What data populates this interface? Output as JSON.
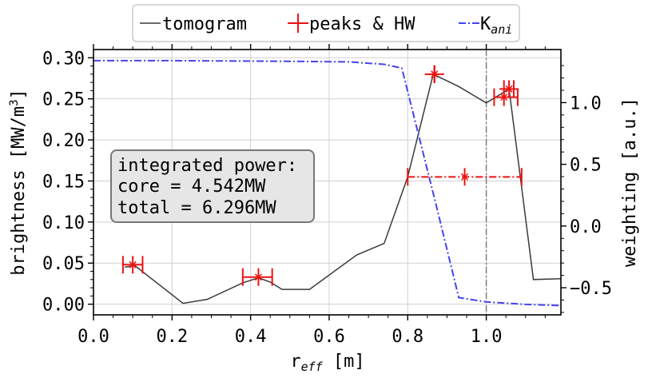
{
  "chart_data": {
    "type": "line",
    "xlabel": "r_eff [m]",
    "xlabel_main": "r",
    "xlabel_sub": "eff",
    "xlabel_unit": " [m]",
    "ylabel_left": "brightness [MW/m³]",
    "ylabel_left_main": "brightness [MW/m",
    "ylabel_left_sup": "3",
    "ylabel_left_end": "]",
    "ylabel_right": "weighting [a.u.]",
    "xlim": [
      0.0,
      1.19
    ],
    "ylim_left": [
      -0.013,
      0.31
    ],
    "ylim_right": [
      -0.72,
      1.43
    ],
    "x_ticks": [
      0.0,
      0.2,
      0.4,
      0.6,
      0.8,
      1.0
    ],
    "x_tick_labels": [
      "0.0",
      "0.2",
      "0.4",
      "0.6",
      "0.8",
      "1.0"
    ],
    "y_left_ticks": [
      0.0,
      0.05,
      0.1,
      0.15,
      0.2,
      0.25,
      0.3
    ],
    "y_left_tick_labels": [
      "0.00",
      "0.05",
      "0.10",
      "0.15",
      "0.20",
      "0.25",
      "0.30"
    ],
    "y_right_ticks": [
      -0.5,
      0.0,
      0.5,
      1.0
    ],
    "y_right_tick_labels": [
      "−0.5",
      "0.0",
      "0.5",
      "1.0"
    ],
    "grid": true,
    "legend_position": "top-center (above plot)",
    "legend": [
      {
        "label": "tomogram",
        "style": "line",
        "color": "#3a3a3a"
      },
      {
        "label": "peaks & HW",
        "style": "cross",
        "color": "#ee1111"
      },
      {
        "label": "K",
        "sub": "ani",
        "style": "dashdot",
        "color": "#4444ee"
      }
    ],
    "series": [
      {
        "name": "tomogram",
        "axis": "left",
        "color": "#3a3a3a",
        "x": [
          0.08,
          0.105,
          0.228,
          0.29,
          0.38,
          0.42,
          0.45,
          0.48,
          0.55,
          0.67,
          0.74,
          0.8,
          0.865,
          0.93,
          1.0,
          1.058,
          1.12,
          1.19
        ],
        "y": [
          0.045,
          0.047,
          0.001,
          0.006,
          0.026,
          0.032,
          0.027,
          0.018,
          0.018,
          0.06,
          0.074,
          0.155,
          0.28,
          0.265,
          0.245,
          0.262,
          0.03,
          0.031
        ]
      },
      {
        "name": "K_ani",
        "axis": "right",
        "color": "#4444ee",
        "x": [
          0.0,
          0.2,
          0.5,
          0.65,
          0.74,
          0.785,
          0.87,
          0.93,
          1.0,
          1.1,
          1.19
        ],
        "y": [
          1.34,
          1.34,
          1.335,
          1.33,
          1.31,
          1.28,
          0.2,
          -0.58,
          -0.615,
          -0.635,
          -0.645
        ]
      }
    ],
    "peaks": [
      {
        "x": 0.1,
        "y": 0.048,
        "hw_left": 0.075,
        "hw_right": 0.125,
        "err": 0.006,
        "major": false
      },
      {
        "x": 0.42,
        "y": 0.033,
        "hw_left": 0.38,
        "hw_right": 0.455,
        "err": 0.01,
        "major": false
      },
      {
        "x": 0.868,
        "y": 0.28,
        "hw_left": 0.868,
        "hw_right": 0.868,
        "err": 0.01,
        "major": false
      },
      {
        "x": 1.058,
        "y": 0.262,
        "hw_left": 1.045,
        "hw_right": 1.07,
        "err": 0.008,
        "major": false
      },
      {
        "x": 1.045,
        "y": 0.252,
        "hw_left": 1.02,
        "hw_right": 1.08,
        "err": 0.008,
        "major": false
      },
      {
        "x": 0.945,
        "y": 0.155,
        "hw_left": 0.8,
        "hw_right": 1.09,
        "err": 0.012,
        "major": true
      }
    ],
    "vline": {
      "x": 1.0,
      "color": "#777777"
    },
    "annotation": {
      "line1": "integrated power:",
      "line2": "core = 4.542MW",
      "line3": "total = 6.296MW"
    }
  }
}
